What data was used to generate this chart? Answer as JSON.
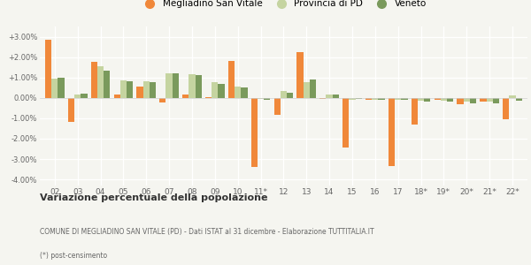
{
  "years": [
    "02",
    "03",
    "04",
    "05",
    "06",
    "07",
    "08",
    "09",
    "10",
    "11*",
    "12",
    "13",
    "14",
    "15",
    "16",
    "17",
    "18*",
    "19*",
    "20*",
    "21*",
    "22*"
  ],
  "megliadino": [
    2.85,
    -1.2,
    1.75,
    0.15,
    0.55,
    -0.22,
    0.18,
    0.05,
    1.8,
    -3.4,
    -0.85,
    2.25,
    -0.05,
    -2.45,
    -0.1,
    -3.35,
    -1.3,
    -0.1,
    -0.3,
    -0.2,
    -1.05
  ],
  "provincia": [
    0.95,
    0.15,
    1.55,
    0.85,
    0.8,
    1.2,
    1.15,
    0.75,
    0.55,
    -0.05,
    0.35,
    0.75,
    0.15,
    -0.1,
    -0.1,
    -0.1,
    -0.15,
    -0.15,
    -0.2,
    -0.2,
    0.1
  ],
  "veneto": [
    1.0,
    0.22,
    1.35,
    0.8,
    0.75,
    1.2,
    1.1,
    0.7,
    0.5,
    -0.08,
    0.25,
    0.9,
    0.15,
    -0.05,
    -0.1,
    -0.1,
    -0.2,
    -0.2,
    -0.25,
    -0.25,
    -0.15
  ],
  "color_meg": "#f0883a",
  "color_prov": "#c5d4a0",
  "color_ven": "#7a9a5c",
  "bg_color": "#f5f5f0",
  "ylim_min": -4.3,
  "ylim_max": 3.5,
  "yticks": [
    -4.0,
    -3.0,
    -2.0,
    -1.0,
    0.0,
    1.0,
    2.0,
    3.0
  ],
  "title_bold": "Variazione percentuale della popolazione",
  "footnote": "COMUNE DI MEGLIADINO SAN VITALE (PD) - Dati ISTAT al 31 dicembre - Elaborazione TUTTITALIA.IT",
  "footnote2": "(*) post-censimento",
  "legend_labels": [
    "Megliadino San Vitale",
    "Provincia di PD",
    "Veneto"
  ]
}
